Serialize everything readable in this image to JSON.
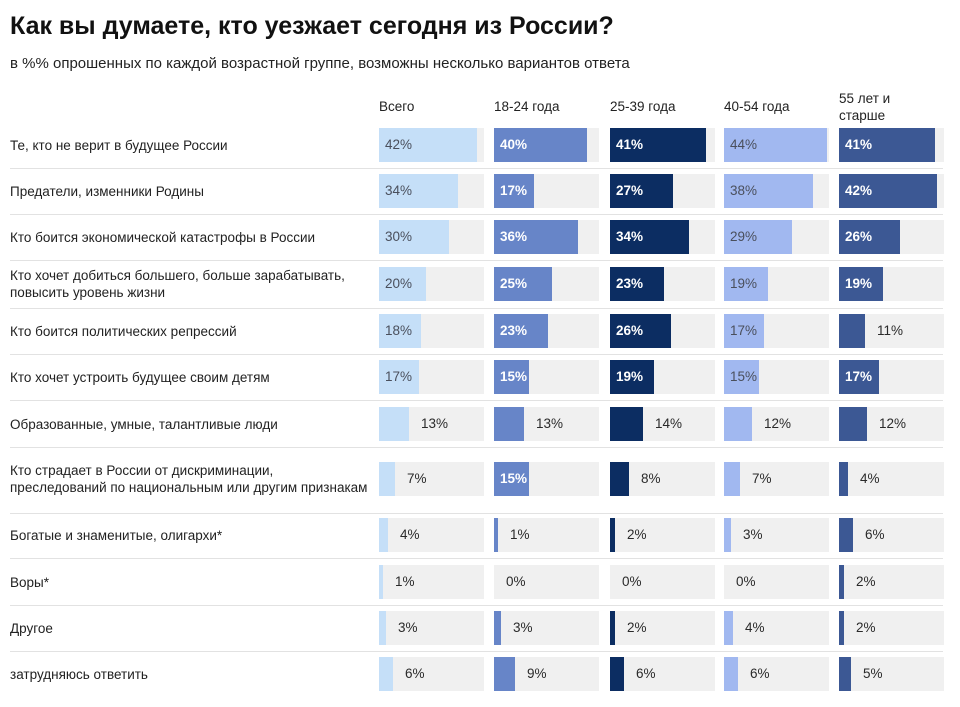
{
  "title": "Как вы думаете, кто уезжает сегодня из России?",
  "subtitle": "в %% опрошенных по каждой возрастной группе, возможны несколько вариантов ответа",
  "chart_data": {
    "type": "bar",
    "max_value": 45,
    "groups": [
      {
        "name": "Всего",
        "color": "#c5dff8"
      },
      {
        "name": "18-24 года",
        "color": "#6785c8"
      },
      {
        "name": "25-39 года",
        "color": "#0c2d62"
      },
      {
        "name": "40-54 года",
        "color": "#a1b8f0"
      },
      {
        "name": "55 лет и старше",
        "color": "#3c5894"
      }
    ],
    "categories": [
      "Те, кто не верит в будущее России",
      "Предатели, изменники Родины",
      "Кто боится экономической катастрофы в России",
      "Кто хочет добиться большего, больше зарабатывать, повысить уровень жизни",
      "Кто боится политических репрессий",
      "Кто хочет устроить будущее своим детям",
      "Образованные, умные, талантливые люди",
      "Кто страдает в России от дискриминации, преследований по национальным или другим признакам",
      "Богатые и знаменитые, олигархи*",
      "Воры*",
      "Другое",
      "затрудняюсь ответить"
    ],
    "values": [
      [
        42,
        40,
        41,
        44,
        41
      ],
      [
        34,
        17,
        27,
        38,
        42
      ],
      [
        30,
        36,
        34,
        29,
        26
      ],
      [
        20,
        25,
        23,
        19,
        19
      ],
      [
        18,
        23,
        26,
        17,
        11
      ],
      [
        17,
        15,
        19,
        15,
        17
      ],
      [
        13,
        13,
        14,
        12,
        12
      ],
      [
        7,
        15,
        8,
        7,
        4
      ],
      [
        4,
        1,
        2,
        3,
        6
      ],
      [
        1,
        0,
        0,
        0,
        2
      ],
      [
        3,
        3,
        2,
        4,
        2
      ],
      [
        6,
        9,
        6,
        6,
        5
      ]
    ],
    "labels": [
      [
        "42%",
        "40%",
        "41%",
        "44%",
        "41%"
      ],
      [
        "34%",
        "17%",
        "27%",
        "38%",
        "42%"
      ],
      [
        "30%",
        "36%",
        "34%",
        "29%",
        "26%"
      ],
      [
        "20%",
        "25%",
        "23%",
        "19%",
        "19%"
      ],
      [
        "18%",
        "23%",
        "26%",
        "17%",
        "11%"
      ],
      [
        "17%",
        "15%",
        "19%",
        "15%",
        "17%"
      ],
      [
        "13%",
        "13%",
        "14%",
        "12%",
        "12%"
      ],
      [
        "7%",
        "15%",
        "8%",
        "7%",
        "4%"
      ],
      [
        "4%",
        "1%",
        "2%",
        "3%",
        "6%"
      ],
      [
        "1%",
        "0%",
        "0%",
        "0%",
        "2%"
      ],
      [
        "3%",
        "3%",
        "2%",
        "4%",
        "2%"
      ],
      [
        "6%",
        "9%",
        "6%",
        "6%",
        "5%"
      ]
    ]
  }
}
